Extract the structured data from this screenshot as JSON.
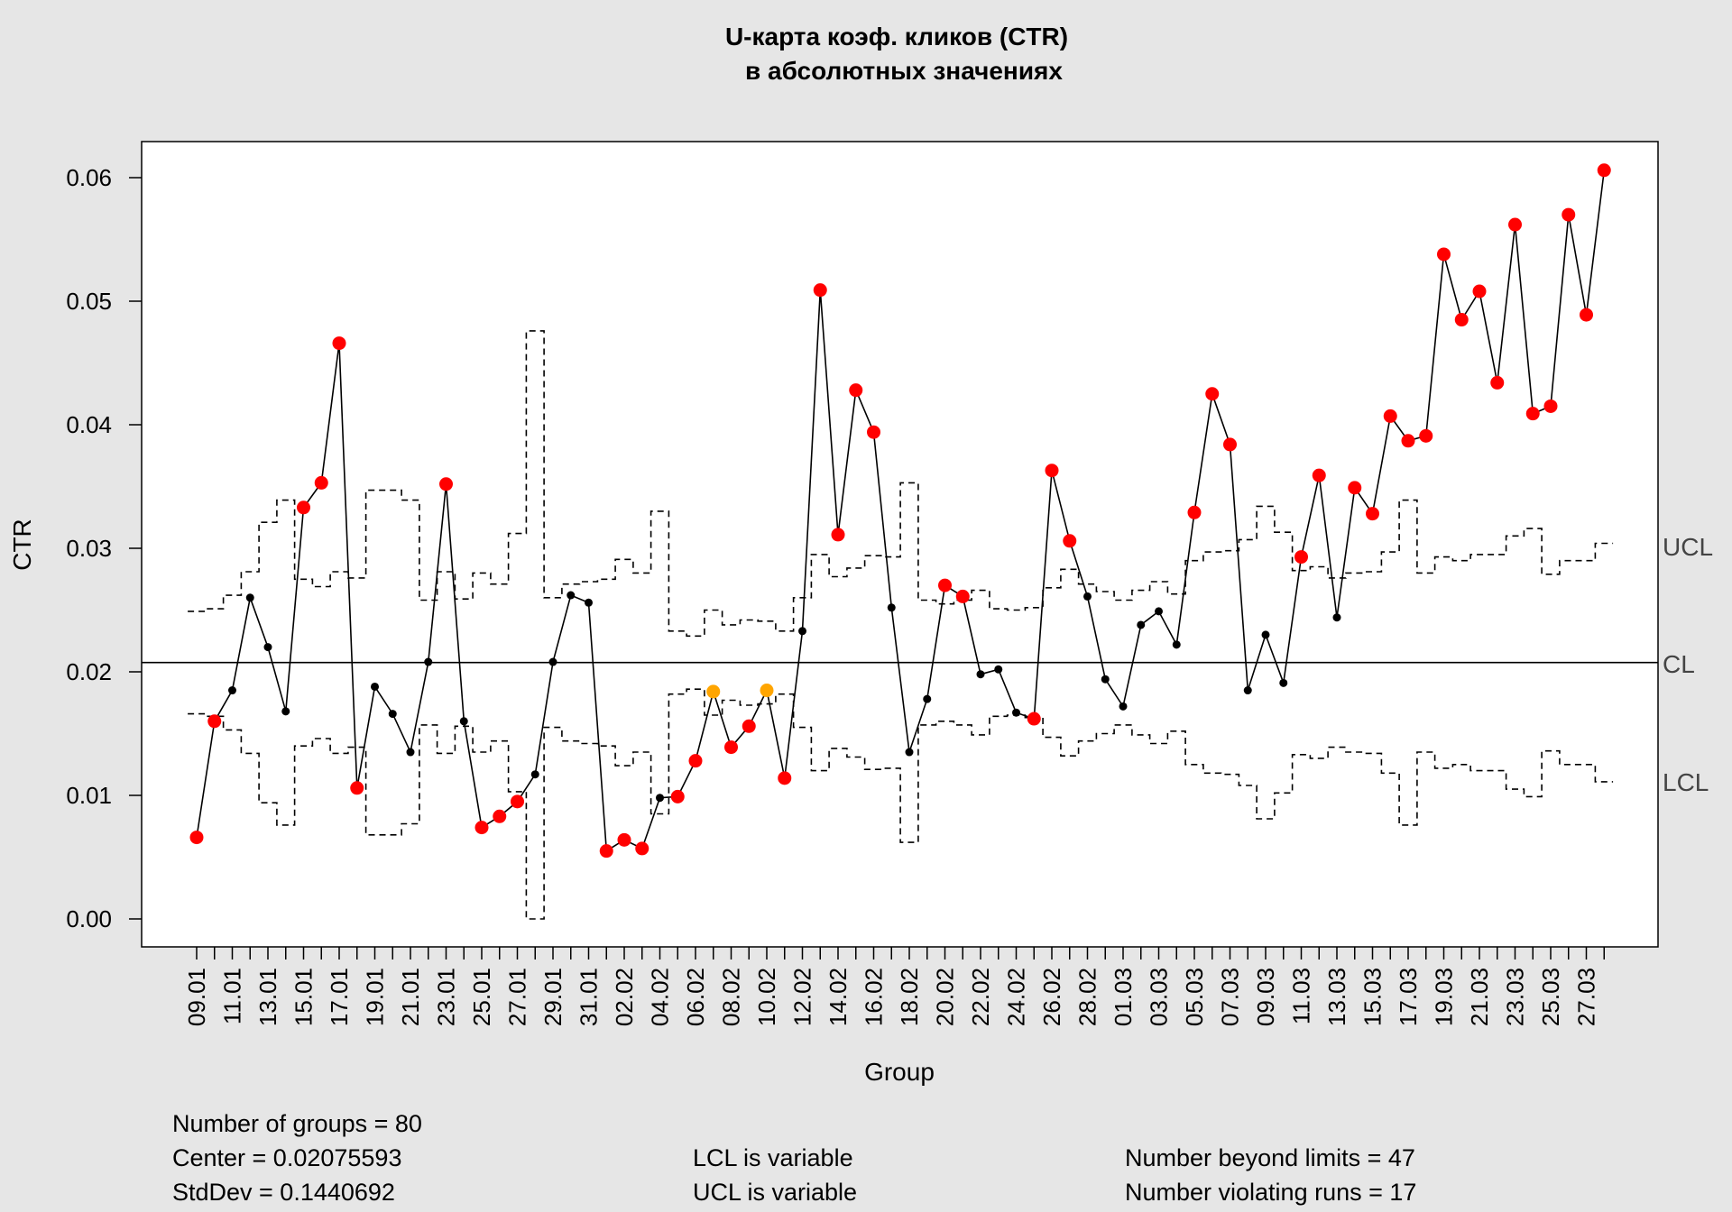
{
  "chart_data": {
    "type": "line",
    "title": "U-карта коэф. кликов (CTR)",
    "subtitle": "в абсолютных значениях",
    "xlabel": "Group",
    "ylabel": "CTR",
    "ylim": [
      0,
      0.06
    ],
    "y_ticks": [
      "0.00",
      "0.01",
      "0.02",
      "0.03",
      "0.04",
      "0.05",
      "0.06"
    ],
    "x_tick_labels": [
      "09.01",
      "11.01",
      "13.01",
      "15.01",
      "17.01",
      "19.01",
      "21.01",
      "23.01",
      "25.01",
      "27.01",
      "29.01",
      "31.01",
      "02.02",
      "04.02",
      "06.02",
      "08.02",
      "10.02",
      "12.02",
      "14.02",
      "16.02",
      "18.02",
      "20.02",
      "22.02",
      "24.02",
      "26.02",
      "28.02",
      "01.03",
      "03.03",
      "05.03",
      "07.03",
      "09.03",
      "11.03",
      "13.03",
      "15.03",
      "17.03",
      "19.03",
      "21.03",
      "23.03",
      "25.03",
      "27.03"
    ],
    "center": 0.02075593,
    "limit_labels": {
      "ucl": "UCL",
      "cl": "CL",
      "lcl": "LCL"
    },
    "colors": {
      "in_control": "#000000",
      "beyond_limits": "#ff0000",
      "violating_runs": "#ffa500"
    },
    "values": [
      0.0066,
      0.016,
      0.0185,
      0.026,
      0.022,
      0.0168,
      0.0333,
      0.0353,
      0.0466,
      0.0106,
      0.0188,
      0.0166,
      0.0135,
      0.0208,
      0.0352,
      0.016,
      0.0074,
      0.0083,
      0.0095,
      0.0117,
      0.0208,
      0.0262,
      0.0256,
      0.0055,
      0.0064,
      0.0057,
      0.0098,
      0.0099,
      0.0128,
      0.0184,
      0.0139,
      0.0156,
      0.0185,
      0.0114,
      0.0233,
      0.0509,
      0.0311,
      0.0428,
      0.0394,
      0.0252,
      0.0135,
      0.0178,
      0.027,
      0.0261,
      0.0198,
      0.0202,
      0.0167,
      0.0162,
      0.0363,
      0.0306,
      0.0261,
      0.0194,
      0.0172,
      0.0238,
      0.0249,
      0.0222,
      0.0329,
      0.0425,
      0.0384,
      0.0185,
      0.023,
      0.0191,
      0.0293,
      0.0359,
      0.0244,
      0.0349,
      0.0328,
      0.0407,
      0.0387,
      0.0391,
      0.0538,
      0.0485,
      0.0508,
      0.0434,
      0.0562,
      0.0409,
      0.0415,
      0.057,
      0.0489,
      0.0606
    ],
    "point_status": [
      "b",
      "b",
      "n",
      "n",
      "n",
      "n",
      "b",
      "b",
      "b",
      "b",
      "n",
      "n",
      "n",
      "n",
      "b",
      "n",
      "b",
      "b",
      "b",
      "n",
      "n",
      "n",
      "n",
      "b",
      "b",
      "b",
      "n",
      "b",
      "b",
      "r",
      "b",
      "b",
      "r",
      "b",
      "n",
      "b",
      "b",
      "b",
      "b",
      "n",
      "n",
      "n",
      "b",
      "b",
      "n",
      "n",
      "n",
      "b",
      "b",
      "b",
      "n",
      "n",
      "n",
      "n",
      "n",
      "n",
      "b",
      "b",
      "b",
      "n",
      "n",
      "n",
      "b",
      "b",
      "n",
      "b",
      "b",
      "b",
      "b",
      "b",
      "b",
      "b",
      "b",
      "b",
      "b",
      "b",
      "b",
      "b",
      "b",
      "b"
    ],
    "ucl": [
      0.0249,
      0.0251,
      0.0262,
      0.0281,
      0.0321,
      0.0339,
      0.0275,
      0.0269,
      0.0281,
      0.0276,
      0.0347,
      0.0347,
      0.0339,
      0.0258,
      0.0281,
      0.0259,
      0.028,
      0.0271,
      0.0312,
      0.0476,
      0.026,
      0.0271,
      0.0273,
      0.0275,
      0.0291,
      0.028,
      0.033,
      0.0233,
      0.0229,
      0.025,
      0.0238,
      0.0242,
      0.0241,
      0.0233,
      0.026,
      0.0295,
      0.0277,
      0.0284,
      0.0294,
      0.0293,
      0.0353,
      0.0258,
      0.0255,
      0.0258,
      0.0266,
      0.0251,
      0.025,
      0.0252,
      0.0268,
      0.0283,
      0.0271,
      0.0265,
      0.0258,
      0.0266,
      0.0273,
      0.0263,
      0.029,
      0.0297,
      0.0298,
      0.0307,
      0.0334,
      0.0313,
      0.0282,
      0.0285,
      0.0276,
      0.028,
      0.0281,
      0.0297,
      0.0339,
      0.028,
      0.0293,
      0.029,
      0.0295,
      0.0295,
      0.031,
      0.0316,
      0.0279,
      0.029,
      0.029,
      0.0304
    ],
    "lcl": [
      0.0166,
      0.0164,
      0.0153,
      0.0134,
      0.0094,
      0.0076,
      0.014,
      0.0146,
      0.0134,
      0.0139,
      0.0068,
      0.0068,
      0.0077,
      0.0157,
      0.0134,
      0.0156,
      0.0135,
      0.0144,
      0.0103,
      0.0,
      0.0155,
      0.0144,
      0.0142,
      0.014,
      0.0124,
      0.0135,
      0.0085,
      0.0182,
      0.0186,
      0.0165,
      0.0177,
      0.0173,
      0.0174,
      0.0182,
      0.0155,
      0.012,
      0.0138,
      0.0131,
      0.0121,
      0.0122,
      0.0062,
      0.0157,
      0.016,
      0.0157,
      0.0149,
      0.0164,
      0.0165,
      0.0163,
      0.0147,
      0.0132,
      0.0144,
      0.015,
      0.0157,
      0.0149,
      0.0142,
      0.0152,
      0.0125,
      0.0118,
      0.0117,
      0.0108,
      0.0081,
      0.0102,
      0.0133,
      0.013,
      0.0139,
      0.0135,
      0.0134,
      0.0118,
      0.0076,
      0.0135,
      0.0122,
      0.0125,
      0.012,
      0.012,
      0.0105,
      0.0099,
      0.0136,
      0.0125,
      0.0125,
      0.0111
    ]
  },
  "stats": {
    "groups": "Number of groups = 80",
    "center": "Center = 0.02075593",
    "stddev": "StdDev = 0.1440692",
    "lcl": "LCL is variable",
    "ucl": "UCL is variable",
    "beyond": "Number beyond limits = 47",
    "runs": "Number violating runs = 17"
  }
}
